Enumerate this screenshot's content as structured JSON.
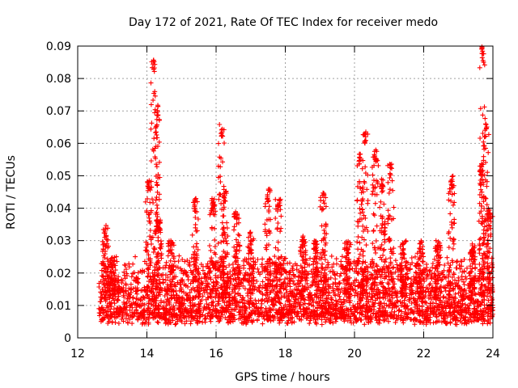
{
  "chart_data": {
    "type": "scatter",
    "title": "Day 172 of 2021, Rate Of TEC Index for receiver medo",
    "xlabel": "GPS time / hours",
    "ylabel": "ROTI / TECUs",
    "xlim": [
      12,
      24
    ],
    "ylim": [
      0,
      0.09
    ],
    "xticks": [
      "12",
      "14",
      "16",
      "18",
      "20",
      "22",
      "24"
    ],
    "yticks": [
      "0",
      "0.01",
      "0.02",
      "0.03",
      "0.04",
      "0.05",
      "0.06",
      "0.07",
      "0.08",
      "0.09"
    ],
    "grid": true,
    "marker": "+",
    "series_color": "#ff0000",
    "x_start": 12.6,
    "x_end": 24.0,
    "baseline_range": [
      0.004,
      0.022
    ],
    "clusters": [
      {
        "x": 12.8,
        "y_max": 0.035
      },
      {
        "x": 13.0,
        "y_max": 0.025
      },
      {
        "x": 14.05,
        "y_max": 0.049
      },
      {
        "x": 14.2,
        "y_max": 0.086
      },
      {
        "x": 14.3,
        "y_max": 0.072
      },
      {
        "x": 14.35,
        "y_max": 0.037
      },
      {
        "x": 14.7,
        "y_max": 0.03
      },
      {
        "x": 15.4,
        "y_max": 0.043
      },
      {
        "x": 15.9,
        "y_max": 0.043
      },
      {
        "x": 16.15,
        "y_max": 0.066
      },
      {
        "x": 16.25,
        "y_max": 0.046
      },
      {
        "x": 16.6,
        "y_max": 0.039
      },
      {
        "x": 17.0,
        "y_max": 0.033
      },
      {
        "x": 17.5,
        "y_max": 0.046
      },
      {
        "x": 17.8,
        "y_max": 0.043
      },
      {
        "x": 18.5,
        "y_max": 0.032
      },
      {
        "x": 18.9,
        "y_max": 0.03
      },
      {
        "x": 19.1,
        "y_max": 0.045
      },
      {
        "x": 19.8,
        "y_max": 0.03
      },
      {
        "x": 20.15,
        "y_max": 0.057
      },
      {
        "x": 20.3,
        "y_max": 0.064
      },
      {
        "x": 20.6,
        "y_max": 0.058
      },
      {
        "x": 20.8,
        "y_max": 0.049
      },
      {
        "x": 21.05,
        "y_max": 0.054
      },
      {
        "x": 21.4,
        "y_max": 0.03
      },
      {
        "x": 21.9,
        "y_max": 0.03
      },
      {
        "x": 22.4,
        "y_max": 0.03
      },
      {
        "x": 22.8,
        "y_max": 0.05
      },
      {
        "x": 23.4,
        "y_max": 0.029
      },
      {
        "x": 23.65,
        "y_max": 0.054
      },
      {
        "x": 23.7,
        "y_max": 0.09
      },
      {
        "x": 23.8,
        "y_max": 0.066
      },
      {
        "x": 23.9,
        "y_max": 0.04
      }
    ]
  }
}
